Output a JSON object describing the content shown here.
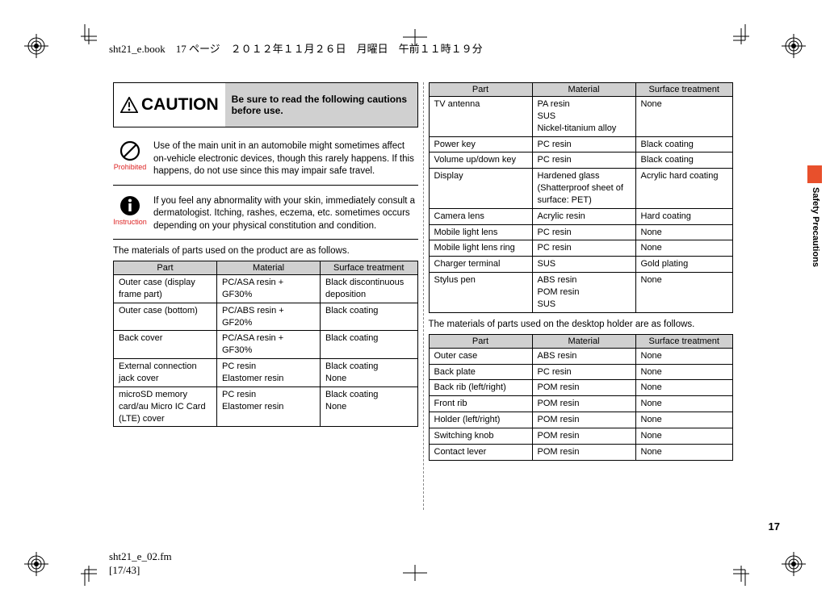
{
  "header": {
    "running_head": "sht21_e.book　17 ページ　２０１２年１１月２６日　月曜日　午前１１時１９分"
  },
  "footer": {
    "file_ref_line1": "sht21_e_02.fm",
    "file_ref_line2": "[17/43]"
  },
  "side": {
    "section_label": "Safety Precautions",
    "tab_color": "#e8502c"
  },
  "page_number": "17",
  "caution": {
    "heading": "CAUTION",
    "message": "Be sure to read the following cautions before use."
  },
  "notes": [
    {
      "icon": "prohibited-icon",
      "icon_label": "Prohibited",
      "text": "Use of the main unit in an automobile might sometimes affect on-vehicle electronic devices, though this rarely happens. If this happens, do not use since this may impair safe travel."
    },
    {
      "icon": "instruction-icon",
      "icon_label": "Instruction",
      "text": "If you feel any abnormality with your skin, immediately consult a dermatologist. Itching, rashes, eczema, etc. sometimes occurs depending on your physical constitution and condition."
    }
  ],
  "materials": {
    "intro_product": "The materials of parts used on the product are as follows.",
    "intro_holder": "The materials of parts used on the desktop holder are as follows.",
    "columns": [
      "Part",
      "Material",
      "Surface treatment"
    ],
    "product_rows_a": [
      [
        "Outer case (display frame part)",
        "PC/ASA resin + GF30%",
        "Black discontinuous deposition"
      ],
      [
        "Outer case (bottom)",
        "PC/ABS resin + GF20%",
        "Black coating"
      ],
      [
        "Back cover",
        "PC/ASA resin + GF30%",
        "Black coating"
      ],
      [
        "External connection jack cover",
        "PC resin\nElastomer resin",
        "Black coating\nNone"
      ],
      [
        "microSD memory card/au Micro IC Card (LTE) cover",
        "PC resin\nElastomer resin",
        "Black coating\nNone"
      ]
    ],
    "product_rows_b": [
      [
        "TV antenna",
        "PA resin\nSUS\nNickel-titanium alloy",
        "None"
      ],
      [
        "Power key",
        "PC resin",
        "Black coating"
      ],
      [
        "Volume up/down key",
        "PC resin",
        "Black coating"
      ],
      [
        "Display",
        "Hardened glass (Shatterproof sheet of surface: PET)",
        "Acrylic hard coating"
      ],
      [
        "Camera lens",
        "Acrylic resin",
        "Hard coating"
      ],
      [
        "Mobile light lens",
        "PC resin",
        "None"
      ],
      [
        "Mobile light lens ring",
        "PC resin",
        "None"
      ],
      [
        "Charger terminal",
        "SUS",
        "Gold plating"
      ],
      [
        "Stylus pen",
        "ABS resin\nPOM resin\nSUS",
        "None"
      ]
    ],
    "holder_rows": [
      [
        "Outer case",
        "ABS resin",
        "None"
      ],
      [
        "Back plate",
        "PC resin",
        "None"
      ],
      [
        "Back rib (left/right)",
        "POM resin",
        "None"
      ],
      [
        "Front rib",
        "POM resin",
        "None"
      ],
      [
        "Holder (left/right)",
        "POM resin",
        "None"
      ],
      [
        "Switching knob",
        "POM resin",
        "None"
      ],
      [
        "Contact lever",
        "POM resin",
        "None"
      ]
    ]
  },
  "style": {
    "header_bg": "#d0d0d0",
    "border_color": "#000000",
    "body_font_size": 11.5,
    "table_font_size": 11,
    "caution_font_size": 21,
    "note_label_color": "#d22222"
  }
}
